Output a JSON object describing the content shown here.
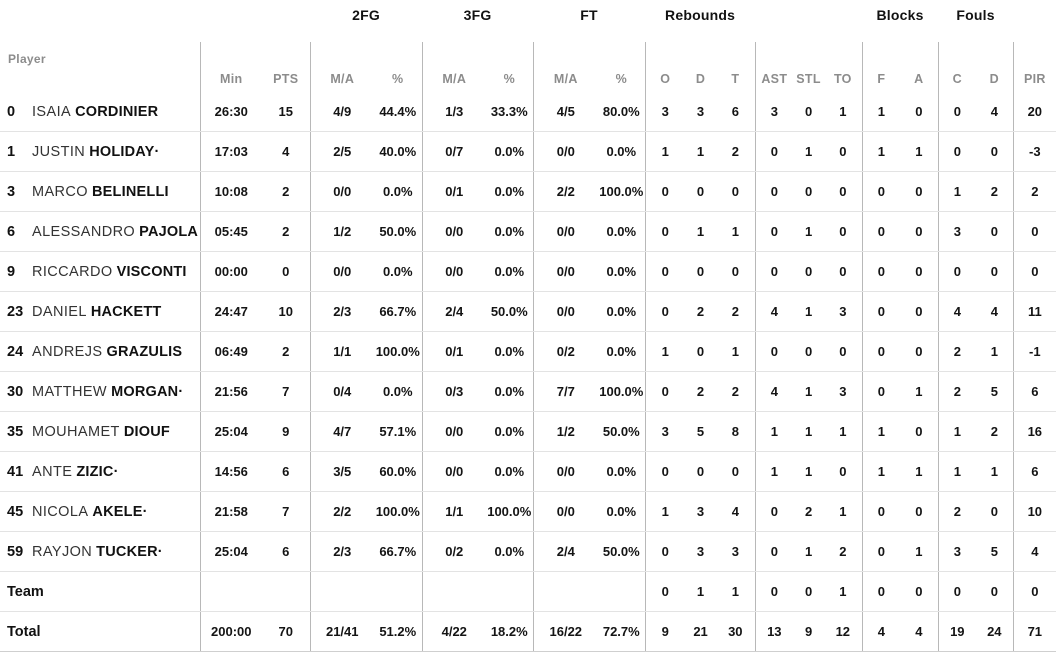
{
  "colors": {
    "text": "#141414",
    "muted_label": "#8c8c8c",
    "divider_vertical": "#b8b8b8",
    "divider_horizontal": "#e3e3e3",
    "background": "#ffffff"
  },
  "starter_indicator": "·",
  "table": {
    "player_header": "Player",
    "groups": {
      "fg2": "2FG",
      "fg3": "3FG",
      "ft": "FT",
      "rebounds": "Rebounds",
      "blocks": "Blocks",
      "fouls": "Fouls"
    },
    "columns": {
      "min": "Min",
      "pts": "PTS",
      "ma": "M/A",
      "pct": "%",
      "o": "O",
      "d": "D",
      "t": "T",
      "ast": "AST",
      "stl": "STL",
      "to": "TO",
      "f": "F",
      "a": "A",
      "c": "C",
      "dd": "D",
      "pir": "PIR"
    },
    "rows": [
      {
        "num": "0",
        "first": "ISAIA",
        "last": "CORDINIER",
        "starter": false,
        "min": "26:30",
        "pts": "15",
        "fg2_ma": "4/9",
        "fg2_pct": "44.4%",
        "fg3_ma": "1/3",
        "fg3_pct": "33.3%",
        "ft_ma": "4/5",
        "ft_pct": "80.0%",
        "o": "3",
        "d": "3",
        "t": "6",
        "ast": "3",
        "stl": "0",
        "to": "1",
        "bf": "1",
        "ba": "0",
        "fc": "0",
        "fd": "4",
        "pir": "20"
      },
      {
        "num": "1",
        "first": "JUSTIN",
        "last": "HOLIDAY",
        "starter": true,
        "min": "17:03",
        "pts": "4",
        "fg2_ma": "2/5",
        "fg2_pct": "40.0%",
        "fg3_ma": "0/7",
        "fg3_pct": "0.0%",
        "ft_ma": "0/0",
        "ft_pct": "0.0%",
        "o": "1",
        "d": "1",
        "t": "2",
        "ast": "0",
        "stl": "1",
        "to": "0",
        "bf": "1",
        "ba": "1",
        "fc": "0",
        "fd": "0",
        "pir": "-3"
      },
      {
        "num": "3",
        "first": "MARCO",
        "last": "BELINELLI",
        "starter": false,
        "min": "10:08",
        "pts": "2",
        "fg2_ma": "0/0",
        "fg2_pct": "0.0%",
        "fg3_ma": "0/1",
        "fg3_pct": "0.0%",
        "ft_ma": "2/2",
        "ft_pct": "100.0%",
        "o": "0",
        "d": "0",
        "t": "0",
        "ast": "0",
        "stl": "0",
        "to": "0",
        "bf": "0",
        "ba": "0",
        "fc": "1",
        "fd": "2",
        "pir": "2"
      },
      {
        "num": "6",
        "first": "ALESSANDRO",
        "last": "PAJOLA",
        "starter": false,
        "min": "05:45",
        "pts": "2",
        "fg2_ma": "1/2",
        "fg2_pct": "50.0%",
        "fg3_ma": "0/0",
        "fg3_pct": "0.0%",
        "ft_ma": "0/0",
        "ft_pct": "0.0%",
        "o": "0",
        "d": "1",
        "t": "1",
        "ast": "0",
        "stl": "1",
        "to": "0",
        "bf": "0",
        "ba": "0",
        "fc": "3",
        "fd": "0",
        "pir": "0"
      },
      {
        "num": "9",
        "first": "RICCARDO",
        "last": "VISCONTI",
        "starter": false,
        "min": "00:00",
        "pts": "0",
        "fg2_ma": "0/0",
        "fg2_pct": "0.0%",
        "fg3_ma": "0/0",
        "fg3_pct": "0.0%",
        "ft_ma": "0/0",
        "ft_pct": "0.0%",
        "o": "0",
        "d": "0",
        "t": "0",
        "ast": "0",
        "stl": "0",
        "to": "0",
        "bf": "0",
        "ba": "0",
        "fc": "0",
        "fd": "0",
        "pir": "0"
      },
      {
        "num": "23",
        "first": "DANIEL",
        "last": "HACKETT",
        "starter": false,
        "min": "24:47",
        "pts": "10",
        "fg2_ma": "2/3",
        "fg2_pct": "66.7%",
        "fg3_ma": "2/4",
        "fg3_pct": "50.0%",
        "ft_ma": "0/0",
        "ft_pct": "0.0%",
        "o": "0",
        "d": "2",
        "t": "2",
        "ast": "4",
        "stl": "1",
        "to": "3",
        "bf": "0",
        "ba": "0",
        "fc": "4",
        "fd": "4",
        "pir": "11"
      },
      {
        "num": "24",
        "first": "ANDREJS",
        "last": "GRAZULIS",
        "starter": false,
        "min": "06:49",
        "pts": "2",
        "fg2_ma": "1/1",
        "fg2_pct": "100.0%",
        "fg3_ma": "0/1",
        "fg3_pct": "0.0%",
        "ft_ma": "0/2",
        "ft_pct": "0.0%",
        "o": "1",
        "d": "0",
        "t": "1",
        "ast": "0",
        "stl": "0",
        "to": "0",
        "bf": "0",
        "ba": "0",
        "fc": "2",
        "fd": "1",
        "pir": "-1"
      },
      {
        "num": "30",
        "first": "MATTHEW",
        "last": "MORGAN",
        "starter": true,
        "min": "21:56",
        "pts": "7",
        "fg2_ma": "0/4",
        "fg2_pct": "0.0%",
        "fg3_ma": "0/3",
        "fg3_pct": "0.0%",
        "ft_ma": "7/7",
        "ft_pct": "100.0%",
        "o": "0",
        "d": "2",
        "t": "2",
        "ast": "4",
        "stl": "1",
        "to": "3",
        "bf": "0",
        "ba": "1",
        "fc": "2",
        "fd": "5",
        "pir": "6"
      },
      {
        "num": "35",
        "first": "MOUHAMET",
        "last": "DIOUF",
        "starter": false,
        "min": "25:04",
        "pts": "9",
        "fg2_ma": "4/7",
        "fg2_pct": "57.1%",
        "fg3_ma": "0/0",
        "fg3_pct": "0.0%",
        "ft_ma": "1/2",
        "ft_pct": "50.0%",
        "o": "3",
        "d": "5",
        "t": "8",
        "ast": "1",
        "stl": "1",
        "to": "1",
        "bf": "1",
        "ba": "0",
        "fc": "1",
        "fd": "2",
        "pir": "16"
      },
      {
        "num": "41",
        "first": "ANTE",
        "last": "ZIZIC",
        "starter": true,
        "min": "14:56",
        "pts": "6",
        "fg2_ma": "3/5",
        "fg2_pct": "60.0%",
        "fg3_ma": "0/0",
        "fg3_pct": "0.0%",
        "ft_ma": "0/0",
        "ft_pct": "0.0%",
        "o": "0",
        "d": "0",
        "t": "0",
        "ast": "1",
        "stl": "1",
        "to": "0",
        "bf": "1",
        "ba": "1",
        "fc": "1",
        "fd": "1",
        "pir": "6"
      },
      {
        "num": "45",
        "first": "NICOLA",
        "last": "AKELE",
        "starter": true,
        "min": "21:58",
        "pts": "7",
        "fg2_ma": "2/2",
        "fg2_pct": "100.0%",
        "fg3_ma": "1/1",
        "fg3_pct": "100.0%",
        "ft_ma": "0/0",
        "ft_pct": "0.0%",
        "o": "1",
        "d": "3",
        "t": "4",
        "ast": "0",
        "stl": "2",
        "to": "1",
        "bf": "0",
        "ba": "0",
        "fc": "2",
        "fd": "0",
        "pir": "10"
      },
      {
        "num": "59",
        "first": "RAYJON",
        "last": "TUCKER",
        "starter": true,
        "min": "25:04",
        "pts": "6",
        "fg2_ma": "2/3",
        "fg2_pct": "66.7%",
        "fg3_ma": "0/2",
        "fg3_pct": "0.0%",
        "ft_ma": "2/4",
        "ft_pct": "50.0%",
        "o": "0",
        "d": "3",
        "t": "3",
        "ast": "0",
        "stl": "1",
        "to": "2",
        "bf": "0",
        "ba": "1",
        "fc": "3",
        "fd": "5",
        "pir": "4"
      },
      {
        "label": "Team",
        "min": "",
        "pts": "",
        "fg2_ma": "",
        "fg2_pct": "",
        "fg3_ma": "",
        "fg3_pct": "",
        "ft_ma": "",
        "ft_pct": "",
        "o": "0",
        "d": "1",
        "t": "1",
        "ast": "0",
        "stl": "0",
        "to": "1",
        "bf": "0",
        "ba": "0",
        "fc": "0",
        "fd": "0",
        "pir": "0"
      },
      {
        "label": "Total",
        "total": true,
        "min": "200:00",
        "pts": "70",
        "fg2_ma": "21/41",
        "fg2_pct": "51.2%",
        "fg3_ma": "4/22",
        "fg3_pct": "18.2%",
        "ft_ma": "16/22",
        "ft_pct": "72.7%",
        "o": "9",
        "d": "21",
        "t": "30",
        "ast": "13",
        "stl": "9",
        "to": "12",
        "bf": "4",
        "ba": "4",
        "fc": "19",
        "fd": "24",
        "pir": "71"
      }
    ]
  }
}
